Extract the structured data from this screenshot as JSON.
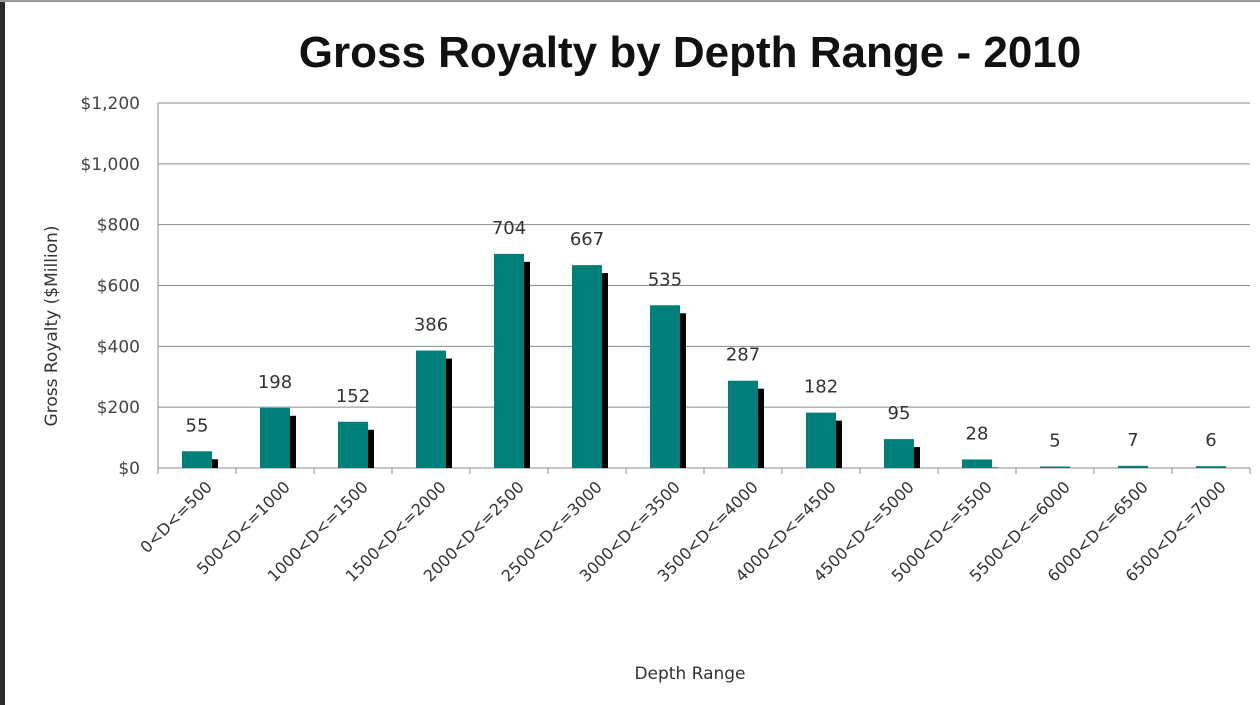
{
  "chart_data": {
    "type": "bar",
    "title": "Gross Royalty by Depth Range - 2010",
    "xlabel": "Depth Range",
    "ylabel": "Gross Royalty ($Million)",
    "categories": [
      "0<D<=500",
      "500<D<=1000",
      "1000<D<=1500",
      "1500<D<=2000",
      "2000<D<=2500",
      "2500<D<=3000",
      "3000<D<=3500",
      "3500<D<=4000",
      "4000<D<=4500",
      "4500<D<=5000",
      "5000<D<=5500",
      "5500<D<=6000",
      "6000<D<=6500",
      "6500<D<=7000"
    ],
    "values": [
      55,
      198,
      152,
      386,
      704,
      667,
      535,
      287,
      182,
      95,
      28,
      5,
      7,
      6
    ],
    "data_labels": [
      "55",
      "198",
      "152",
      "386",
      "704",
      "667",
      "535",
      "287",
      "182",
      "95",
      "28",
      "5",
      "7",
      "6"
    ],
    "ylim": [
      0,
      1200
    ],
    "yticks": [
      0,
      200,
      400,
      600,
      800,
      1000,
      1200
    ],
    "ytick_labels": [
      "$0",
      "$200",
      "$400",
      "$600",
      "$800",
      "$1,000",
      "$1,200"
    ],
    "grid": true,
    "legend": "none",
    "bar_color": "#007f7a",
    "shadow_color": "#000000",
    "grid_color": "#8c8c8c"
  }
}
